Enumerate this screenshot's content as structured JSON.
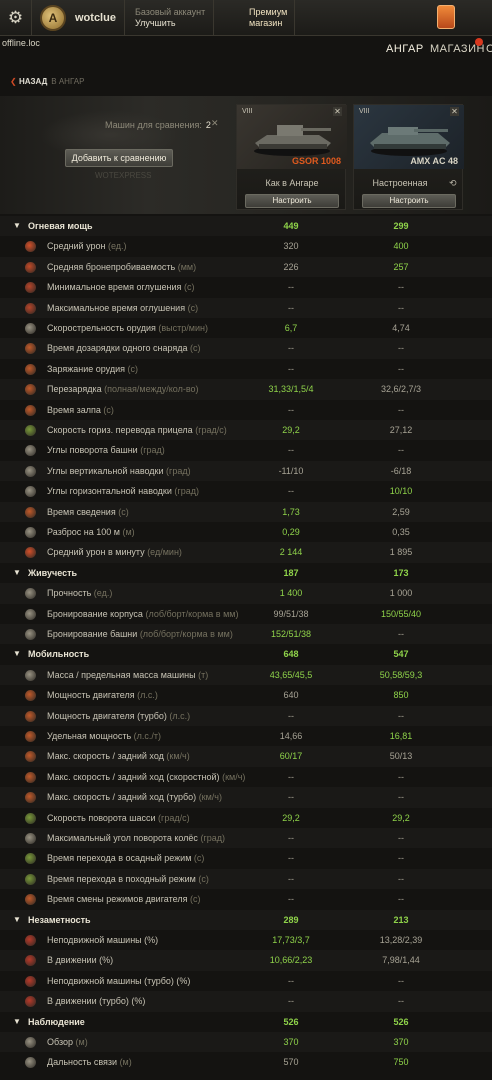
{
  "header": {
    "username": "wotclue",
    "account_type": "Базовый аккаунт",
    "upgrade": "Улучшить",
    "premium_line1": "Премиум",
    "premium_line2": "магазин",
    "offline": "offline.loc",
    "nav": [
      "АНГАР",
      "МАГАЗИН",
      "С"
    ]
  },
  "back": {
    "label": "НАЗАД",
    "to": "В АНГАР"
  },
  "compare": {
    "count_label": "Машин для сравнения:",
    "count": "2",
    "add_button": "Добавить к сравнению",
    "watermark": "WOTEXPRESS"
  },
  "tanks": [
    {
      "tier": "VIII",
      "name": "GSOR 1008",
      "name_color": "#e05a1e",
      "state": "Как в Ангаре",
      "configure": "Настроить"
    },
    {
      "tier": "VIII",
      "name": "AMX AC 48",
      "name_color": "#d8d4c4",
      "state": "Настроенная",
      "configure": "Настроить"
    }
  ],
  "stats": [
    {
      "type": "cat",
      "name": "Огневая мощь",
      "v1": "449",
      "v2": "299",
      "g1": true,
      "g2": true
    },
    {
      "name": "Средний урон",
      "unit": "(ед.)",
      "v1": "320",
      "v2": "400",
      "g2": true,
      "icon": "#d4502a"
    },
    {
      "name": "Средняя бронепробиваемость",
      "unit": "(мм)",
      "v1": "226",
      "v2": "257",
      "g2": true,
      "icon": "#c44a28"
    },
    {
      "name": "Минимальное время оглушения",
      "unit": "(с)",
      "v1": "--",
      "v2": "--",
      "icon": "#b8452a"
    },
    {
      "name": "Максимальное время оглушения",
      "unit": "(с)",
      "v1": "--",
      "v2": "--",
      "icon": "#b8452a"
    },
    {
      "name": "Скорострельность орудия",
      "unit": "(выстр/мин)",
      "v1": "6,7",
      "v2": "4,74",
      "g1": true,
      "icon": "#9a9484"
    },
    {
      "name": "Время дозарядки одного снаряда",
      "unit": "(с)",
      "v1": "--",
      "v2": "--",
      "icon": "#c25a2a"
    },
    {
      "name": "Заряжание орудия",
      "unit": "(с)",
      "v1": "--",
      "v2": "--",
      "icon": "#c25a2a"
    },
    {
      "name": "Перезарядка",
      "unit": "(полная/между/кол-во)",
      "v1": "31,33/1,5/4",
      "v2": "32,6/2,7/3",
      "g1": true,
      "icon": "#c25a2a"
    },
    {
      "name": "Время залпа",
      "unit": "(с)",
      "v1": "--",
      "v2": "--",
      "icon": "#c25a2a"
    },
    {
      "name": "Скорость гориз. перевода прицела",
      "unit": "(град/с)",
      "v1": "29,2",
      "v2": "27,12",
      "g1": true,
      "icon": "#7a9a3a"
    },
    {
      "name": "Углы поворота башни",
      "unit": "(град)",
      "v1": "--",
      "v2": "--",
      "icon": "#9a9484"
    },
    {
      "name": "Углы вертикальной наводки",
      "unit": "(град)",
      "v1": "-11/10",
      "v2": "-6/18",
      "icon": "#9a9484"
    },
    {
      "name": "Углы горизонтальной наводки",
      "unit": "(град)",
      "v1": "--",
      "v2": "10/10",
      "g2": true,
      "icon": "#9a9484"
    },
    {
      "name": "Время сведения",
      "unit": "(с)",
      "v1": "1,73",
      "v2": "2,59",
      "g1": true,
      "icon": "#c25a2a"
    },
    {
      "name": "Разброс на 100 м",
      "unit": "(м)",
      "v1": "0,29",
      "v2": "0,35",
      "g1": true,
      "icon": "#9a9484"
    },
    {
      "name": "Средний урон в минуту",
      "unit": "(ед/мин)",
      "v1": "2 144",
      "v2": "1 895",
      "g1": true,
      "icon": "#d4502a"
    },
    {
      "type": "cat",
      "name": "Живучесть",
      "v1": "187",
      "v2": "173",
      "g1": true,
      "g2": true
    },
    {
      "name": "Прочность",
      "unit": "(ед.)",
      "v1": "1 400",
      "v2": "1 000",
      "g1": true,
      "icon": "#9a9484"
    },
    {
      "name": "Бронирование корпуса",
      "unit": "(лоб/борт/корма в мм)",
      "v1": "99/51/38",
      "v2": "150/55/40",
      "g2": true,
      "icon": "#9a9484"
    },
    {
      "name": "Бронирование башни",
      "unit": "(лоб/борт/корма в мм)",
      "v1": "152/51/38",
      "v2": "--",
      "g1": true,
      "icon": "#9a9484"
    },
    {
      "type": "cat",
      "name": "Мобильность",
      "v1": "648",
      "v2": "547",
      "g1": true,
      "g2": true
    },
    {
      "name": "Масса / предельная масса машины",
      "unit": "(т)",
      "v1": "43,65/45,5",
      "v2": "50,58/59,3",
      "g1": true,
      "g2": true,
      "icon": "#9a9484"
    },
    {
      "name": "Мощность двигателя",
      "unit": "(л.с.)",
      "v1": "640",
      "v2": "850",
      "g2": true,
      "icon": "#c25a2a"
    },
    {
      "name": "Мощность двигателя (турбо)",
      "unit": "(л.с.)",
      "v1": "--",
      "v2": "--",
      "icon": "#c25a2a"
    },
    {
      "name": "Удельная мощность",
      "unit": "(л.с./т)",
      "v1": "14,66",
      "v2": "16,81",
      "g2": true,
      "icon": "#c25a2a"
    },
    {
      "name": "Макс. скорость / задний ход",
      "unit": "(км/ч)",
      "v1": "60/17",
      "v2": "50/13",
      "g1": true,
      "icon": "#c25a2a"
    },
    {
      "name": "Макс. скорость / задний ход (скоростной)",
      "unit": "(км/ч)",
      "v1": "--",
      "v2": "--",
      "icon": "#c25a2a"
    },
    {
      "name": "Макс. скорость / задний ход (турбо)",
      "unit": "(км/ч)",
      "v1": "--",
      "v2": "--",
      "icon": "#c25a2a"
    },
    {
      "name": "Скорость поворота шасси",
      "unit": "(град/с)",
      "v1": "29,2",
      "v2": "29,2",
      "g1": true,
      "g2": true,
      "icon": "#7a9a3a"
    },
    {
      "name": "Максимальный угол поворота колёс",
      "unit": "(град)",
      "v1": "--",
      "v2": "--",
      "icon": "#9a9484"
    },
    {
      "name": "Время перехода в осадный режим",
      "unit": "(с)",
      "v1": "--",
      "v2": "--",
      "icon": "#7a9a3a"
    },
    {
      "name": "Время перехода в походный режим",
      "unit": "(с)",
      "v1": "--",
      "v2": "--",
      "icon": "#7a9a3a"
    },
    {
      "name": "Время смены режимов двигателя",
      "unit": "(с)",
      "v1": "--",
      "v2": "--",
      "icon": "#c25a2a"
    },
    {
      "type": "cat",
      "name": "Незаметность",
      "v1": "289",
      "v2": "213",
      "g1": true,
      "g2": true
    },
    {
      "name": "Неподвижной машины (%)",
      "unit": "",
      "v1": "17,73/3,7",
      "v2": "13,28/2,39",
      "g1": true,
      "icon": "#b83a2a"
    },
    {
      "name": "В движении (%)",
      "unit": "",
      "v1": "10,66/2,23",
      "v2": "7,98/1,44",
      "g1": true,
      "icon": "#b83a2a"
    },
    {
      "name": "Неподвижной машины (турбо) (%)",
      "unit": "",
      "v1": "--",
      "v2": "--",
      "icon": "#b83a2a"
    },
    {
      "name": "В движении (турбо) (%)",
      "unit": "",
      "v1": "--",
      "v2": "--",
      "icon": "#b83a2a"
    },
    {
      "type": "cat",
      "name": "Наблюдение",
      "v1": "526",
      "v2": "526",
      "g1": true,
      "g2": true
    },
    {
      "name": "Обзор",
      "unit": "(м)",
      "v1": "370",
      "v2": "370",
      "g1": true,
      "g2": true,
      "icon": "#9a9484"
    },
    {
      "name": "Дальность связи",
      "unit": "(м)",
      "v1": "570",
      "v2": "750",
      "g2": true,
      "icon": "#9a9484"
    }
  ]
}
